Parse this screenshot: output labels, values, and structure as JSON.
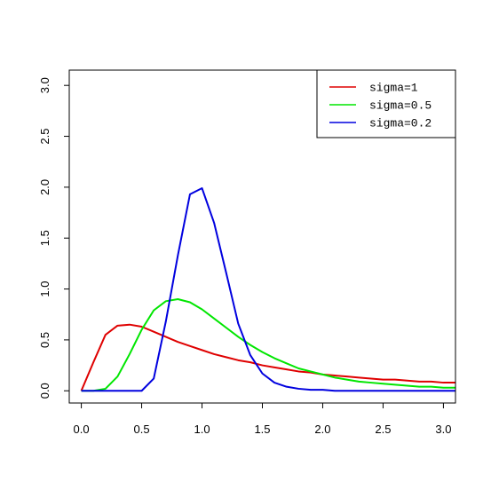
{
  "chart_data": {
    "type": "line",
    "xlim": [
      -0.1,
      3.1
    ],
    "ylim": [
      -0.12,
      3.15
    ],
    "x_ticks": [
      0.0,
      0.5,
      1.0,
      1.5,
      2.0,
      2.5,
      3.0
    ],
    "x_tick_labels": [
      "0.0",
      "0.5",
      "1.0",
      "1.5",
      "2.0",
      "2.5",
      "3.0"
    ],
    "y_ticks": [
      0.0,
      0.5,
      1.0,
      1.5,
      2.0,
      2.5,
      3.0
    ],
    "y_tick_labels": [
      "0.0",
      "0.5",
      "1.0",
      "1.5",
      "2.0",
      "2.5",
      "3.0"
    ],
    "grid": false,
    "legend": "top-right",
    "x": [
      0,
      0.1,
      0.2,
      0.3,
      0.4,
      0.5,
      0.6,
      0.7,
      0.8,
      0.9,
      1.0,
      1.1,
      1.2,
      1.3,
      1.4,
      1.5,
      1.6,
      1.7,
      1.8,
      1.9,
      2.0,
      2.1,
      2.2,
      2.3,
      2.4,
      2.5,
      2.6,
      2.7,
      2.8,
      2.9,
      3.0,
      3.1
    ],
    "series": [
      {
        "name": "sigma=1",
        "color": "#DF0000",
        "values": [
          0,
          0.28,
          0.55,
          0.64,
          0.65,
          0.63,
          0.58,
          0.53,
          0.48,
          0.44,
          0.4,
          0.36,
          0.33,
          0.3,
          0.28,
          0.25,
          0.23,
          0.21,
          0.19,
          0.18,
          0.16,
          0.15,
          0.14,
          0.13,
          0.12,
          0.11,
          0.11,
          0.1,
          0.09,
          0.09,
          0.08,
          0.08
        ]
      },
      {
        "name": "sigma=0.5",
        "color": "#00E600",
        "values": [
          0,
          0,
          0.02,
          0.14,
          0.36,
          0.6,
          0.79,
          0.88,
          0.9,
          0.87,
          0.8,
          0.71,
          0.62,
          0.53,
          0.45,
          0.38,
          0.32,
          0.27,
          0.22,
          0.19,
          0.16,
          0.13,
          0.11,
          0.09,
          0.08,
          0.07,
          0.06,
          0.05,
          0.04,
          0.04,
          0.03,
          0.03
        ]
      },
      {
        "name": "sigma=0.2",
        "color": "#0000DF",
        "values": [
          0,
          0,
          0,
          0,
          0,
          0,
          0.12,
          0.68,
          1.33,
          1.93,
          1.99,
          1.65,
          1.16,
          0.66,
          0.35,
          0.17,
          0.08,
          0.04,
          0.02,
          0.01,
          0.01,
          0,
          0,
          0,
          0,
          0,
          0,
          0,
          0,
          0,
          0,
          0
        ]
      }
    ]
  }
}
